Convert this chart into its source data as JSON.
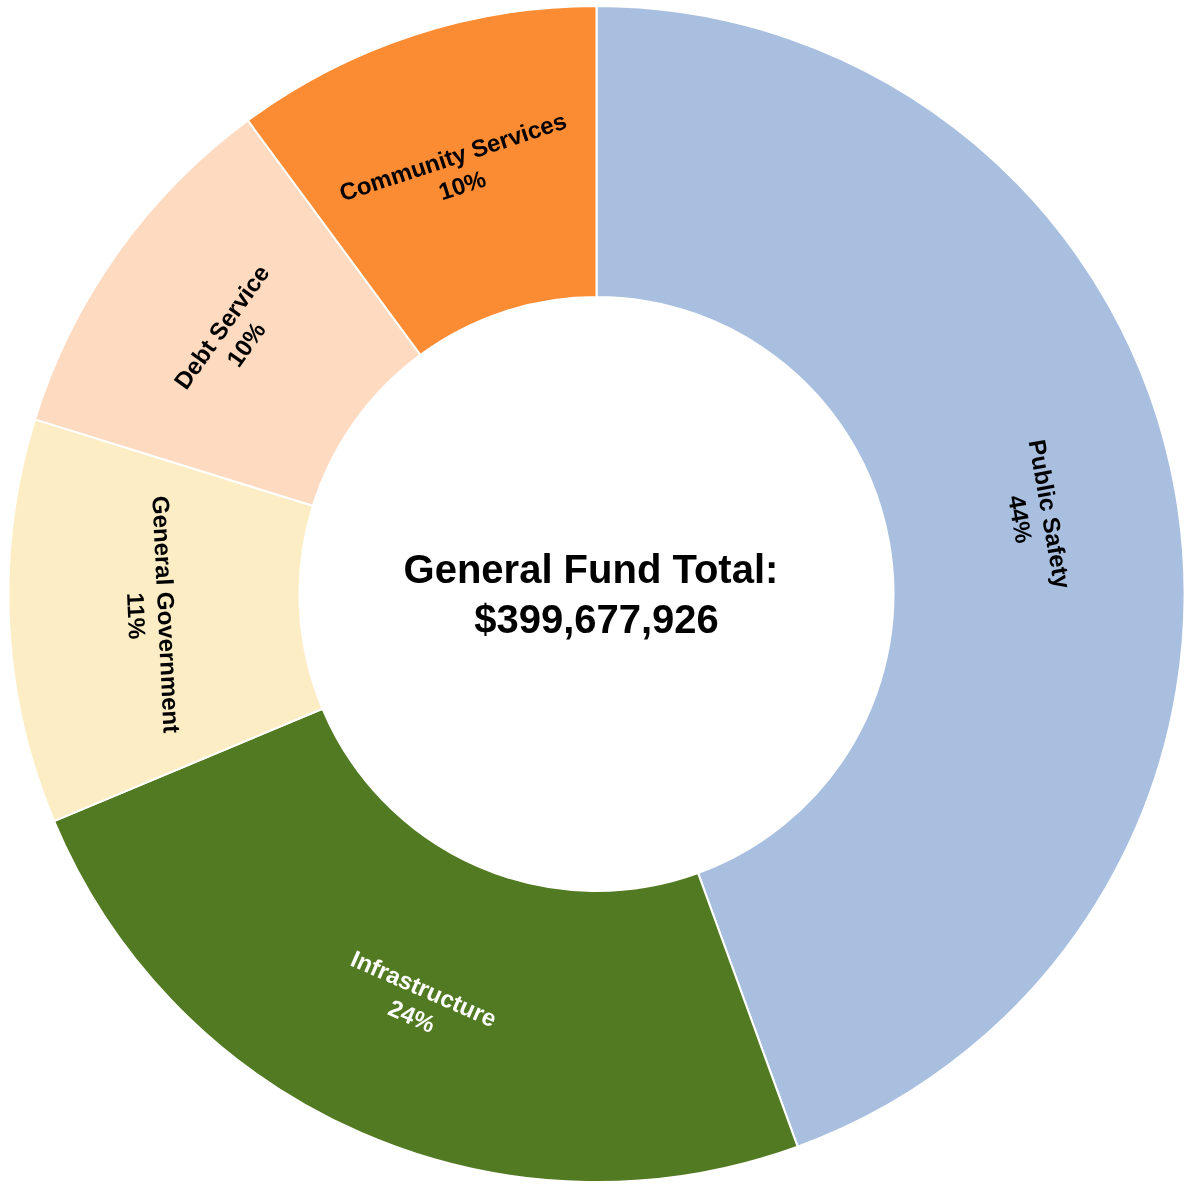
{
  "chart_data": {
    "type": "donut",
    "title": "General Fund Total: $399,677,926",
    "categories": [
      "Public Safety",
      "Infrastructure",
      "General Government",
      "Debt Service",
      "Community Services"
    ],
    "values": [
      44,
      24,
      11,
      10,
      10
    ],
    "value_labels": [
      "44%",
      "24%",
      "11%",
      "10%",
      "10%"
    ],
    "colors": [
      "#a9bfe0",
      "#527a22",
      "#fdedc4",
      "#fddac0",
      "#fc8c33"
    ],
    "legend": false
  }
}
